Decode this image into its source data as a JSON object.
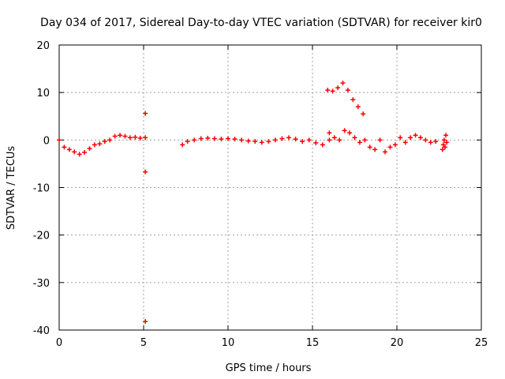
{
  "chart_data": {
    "type": "scatter",
    "title": "Day 034 of 2017, Sidereal Day-to-day VTEC variation (SDTVAR) for receiver kir0",
    "xlabel": "GPS time / hours",
    "ylabel": "SDTVAR / TECUs",
    "xlim": [
      0,
      25
    ],
    "ylim": [
      -40,
      20
    ],
    "xticks": [
      0,
      5,
      10,
      15,
      20,
      25
    ],
    "yticks": [
      -40,
      -30,
      -20,
      -10,
      0,
      10,
      20
    ],
    "grid": true,
    "marker": "+",
    "color": "#ff0000",
    "series": [
      {
        "name": "SDTVAR",
        "segments": [
          {
            "x": [
              0.0,
              0.3,
              0.6,
              0.9,
              1.2,
              1.5,
              1.8,
              2.1,
              2.4,
              2.7,
              3.0,
              3.3,
              3.6,
              3.9,
              4.2,
              4.5,
              4.8,
              5.1
            ],
            "y": [
              0.0,
              -1.5,
              -2.0,
              -2.5,
              -3.0,
              -2.6,
              -1.8,
              -1.0,
              -0.8,
              -0.3,
              0.0,
              0.8,
              1.0,
              0.8,
              0.5,
              0.6,
              0.4,
              0.5
            ]
          },
          {
            "x": [
              7.3,
              7.6,
              8.0,
              8.4,
              8.8,
              9.2,
              9.6,
              10.0,
              10.4,
              10.8,
              11.2,
              11.6,
              12.0,
              12.4,
              12.8,
              13.2,
              13.6,
              14.0,
              14.4,
              14.8,
              15.2,
              15.6,
              16.0
            ],
            "y": [
              -1.0,
              -0.3,
              0.0,
              0.3,
              0.4,
              0.3,
              0.2,
              0.3,
              0.2,
              0.0,
              -0.2,
              -0.3,
              -0.5,
              -0.3,
              0.0,
              0.3,
              0.5,
              0.2,
              -0.3,
              0.0,
              -0.6,
              -1.0,
              0.0
            ]
          },
          {
            "x": [
              15.9,
              16.2,
              16.5,
              16.8,
              17.1,
              17.4,
              17.7,
              18.0
            ],
            "y": [
              10.5,
              10.3,
              11.0,
              12.0,
              10.5,
              8.5,
              7.0,
              5.5
            ]
          },
          {
            "x": [
              16.0,
              16.3,
              16.6,
              16.9,
              17.2,
              17.5,
              17.8,
              18.1,
              18.4,
              18.7,
              19.0,
              19.3,
              19.6,
              19.9,
              20.2,
              20.5,
              20.8,
              21.1,
              21.4,
              21.7,
              22.0,
              22.3
            ],
            "y": [
              1.5,
              0.5,
              0.0,
              2.0,
              1.5,
              0.5,
              -0.5,
              0.0,
              -1.5,
              -2.0,
              0.0,
              -2.5,
              -1.5,
              -1.0,
              0.5,
              -0.5,
              0.5,
              1.0,
              0.5,
              0.0,
              -0.5,
              -0.3
            ]
          },
          {
            "x": [
              22.7,
              22.75,
              22.8,
              22.85,
              22.9,
              22.95
            ],
            "y": [
              -2.0,
              -1.0,
              0.0,
              -1.5,
              1.0,
              -0.5
            ]
          },
          {
            "x": [
              5.1,
              5.1,
              5.1
            ],
            "y": [
              5.6,
              -6.7,
              -38.2
            ]
          }
        ]
      }
    ]
  }
}
